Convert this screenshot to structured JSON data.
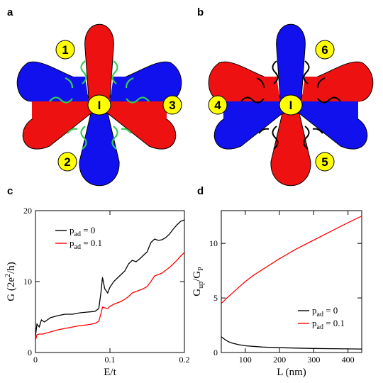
{
  "panels": {
    "a": {
      "letter": "a",
      "island_label": "I",
      "leads": [
        "1",
        "2",
        "3"
      ],
      "colors": {
        "red": "#ee1111",
        "blue": "#1111ee",
        "lead": "#ffff00",
        "edge_arrows": "#33cc55"
      }
    },
    "b": {
      "letter": "b",
      "island_label": "I",
      "leads": [
        "4",
        "5",
        "6"
      ],
      "colors": {
        "red": "#ee1111",
        "blue": "#1111ee",
        "lead": "#ffff00",
        "edge_arrows": "#000000"
      }
    }
  },
  "chart_data": [
    {
      "panel": "c",
      "type": "line",
      "title": "",
      "xlabel": "E/t",
      "ylabel_parts": {
        "main": "G (2e",
        "sup": "2",
        "tail": "/h)"
      },
      "xlim": [
        0,
        0.2
      ],
      "ylim": [
        0,
        20
      ],
      "xticks": [
        0,
        0.1,
        0.2
      ],
      "xtick_labels": [
        "0",
        "0.1",
        "0.2"
      ],
      "yticks": [
        0,
        10,
        20
      ],
      "ytick_labels": [
        "0",
        "10",
        "20"
      ],
      "legend_position": "top-left",
      "series": [
        {
          "name": "p_ad = 0",
          "name_main": "p",
          "name_sub": "ad",
          "name_rest": " = 0",
          "color": "#000000",
          "x": [
            0,
            0.002,
            0.005,
            0.008,
            0.012,
            0.02,
            0.03,
            0.04,
            0.05,
            0.06,
            0.07,
            0.08,
            0.085,
            0.088,
            0.09,
            0.093,
            0.097,
            0.1,
            0.105,
            0.11,
            0.115,
            0.12,
            0.125,
            0.13,
            0.135,
            0.14,
            0.145,
            0.15,
            0.155,
            0.16,
            0.165,
            0.17,
            0.175,
            0.18,
            0.185,
            0.19,
            0.195,
            0.2
          ],
          "y": [
            2.3,
            4.0,
            3.6,
            4.6,
            4.3,
            4.9,
            5.2,
            5.4,
            5.4,
            5.6,
            5.7,
            5.8,
            6.2,
            8.5,
            10.6,
            9.0,
            8.4,
            9.2,
            10.0,
            10.5,
            11.0,
            11.5,
            12.5,
            13.0,
            12.8,
            13.2,
            13.7,
            14.2,
            15.5,
            16.0,
            15.8,
            15.9,
            16.2,
            16.7,
            17.4,
            18.0,
            18.5,
            18.7
          ]
        },
        {
          "name": "p_ad = 0.1",
          "name_main": "p",
          "name_sub": "ad",
          "name_rest": " = 0.1",
          "color": "#ff0000",
          "x": [
            0,
            0.002,
            0.005,
            0.01,
            0.02,
            0.03,
            0.04,
            0.05,
            0.06,
            0.07,
            0.08,
            0.085,
            0.088,
            0.09,
            0.093,
            0.097,
            0.1,
            0.105,
            0.11,
            0.115,
            0.12,
            0.125,
            0.13,
            0.135,
            0.14,
            0.145,
            0.15,
            0.155,
            0.16,
            0.165,
            0.17,
            0.175,
            0.18,
            0.185,
            0.19,
            0.195,
            0.2
          ],
          "y": [
            1.7,
            2.5,
            2.6,
            2.6,
            2.9,
            3.2,
            3.4,
            3.6,
            3.8,
            3.9,
            4.1,
            4.4,
            5.5,
            6.4,
            6.3,
            6.2,
            6.5,
            6.8,
            7.0,
            7.2,
            7.5,
            7.9,
            8.4,
            8.6,
            8.8,
            9.0,
            9.3,
            10.0,
            10.8,
            11.0,
            11.2,
            11.6,
            12.0,
            12.5,
            13.0,
            13.6,
            14.1
          ]
        }
      ]
    },
    {
      "panel": "d",
      "type": "line",
      "title": "",
      "xlabel": "L (nm)",
      "ylabel_parts": {
        "main": "G",
        "sub1": "up",
        "mid": "/G",
        "sub2": "P"
      },
      "xlim": [
        30,
        440
      ],
      "ylim": [
        0,
        13
      ],
      "xticks": [
        100,
        200,
        300,
        400
      ],
      "xtick_labels": [
        "100",
        "200",
        "300",
        "400"
      ],
      "yticks": [
        0,
        5,
        10
      ],
      "ytick_labels": [
        "0",
        "5",
        "10"
      ],
      "legend_position": "bottom-right",
      "series": [
        {
          "name": "p_ad = 0",
          "name_main": "p",
          "name_sub": "ad",
          "name_rest": " = 0",
          "color": "#000000",
          "x": [
            30,
            40,
            50,
            60,
            80,
            100,
            150,
            200,
            250,
            300,
            350,
            400,
            440
          ],
          "y": [
            1.45,
            1.2,
            1.0,
            0.88,
            0.72,
            0.62,
            0.5,
            0.44,
            0.4,
            0.37,
            0.35,
            0.33,
            0.32
          ]
        },
        {
          "name": "p_ad = 0.1",
          "name_main": "p",
          "name_sub": "ad",
          "name_rest": " = 0.1",
          "color": "#ff0000",
          "x": [
            30,
            50,
            75,
            100,
            125,
            150,
            175,
            200,
            250,
            300,
            350,
            400,
            440
          ],
          "y": [
            4.5,
            5.1,
            5.8,
            6.5,
            7.1,
            7.6,
            8.1,
            8.6,
            9.5,
            10.3,
            11.1,
            11.9,
            12.5
          ]
        }
      ]
    }
  ]
}
